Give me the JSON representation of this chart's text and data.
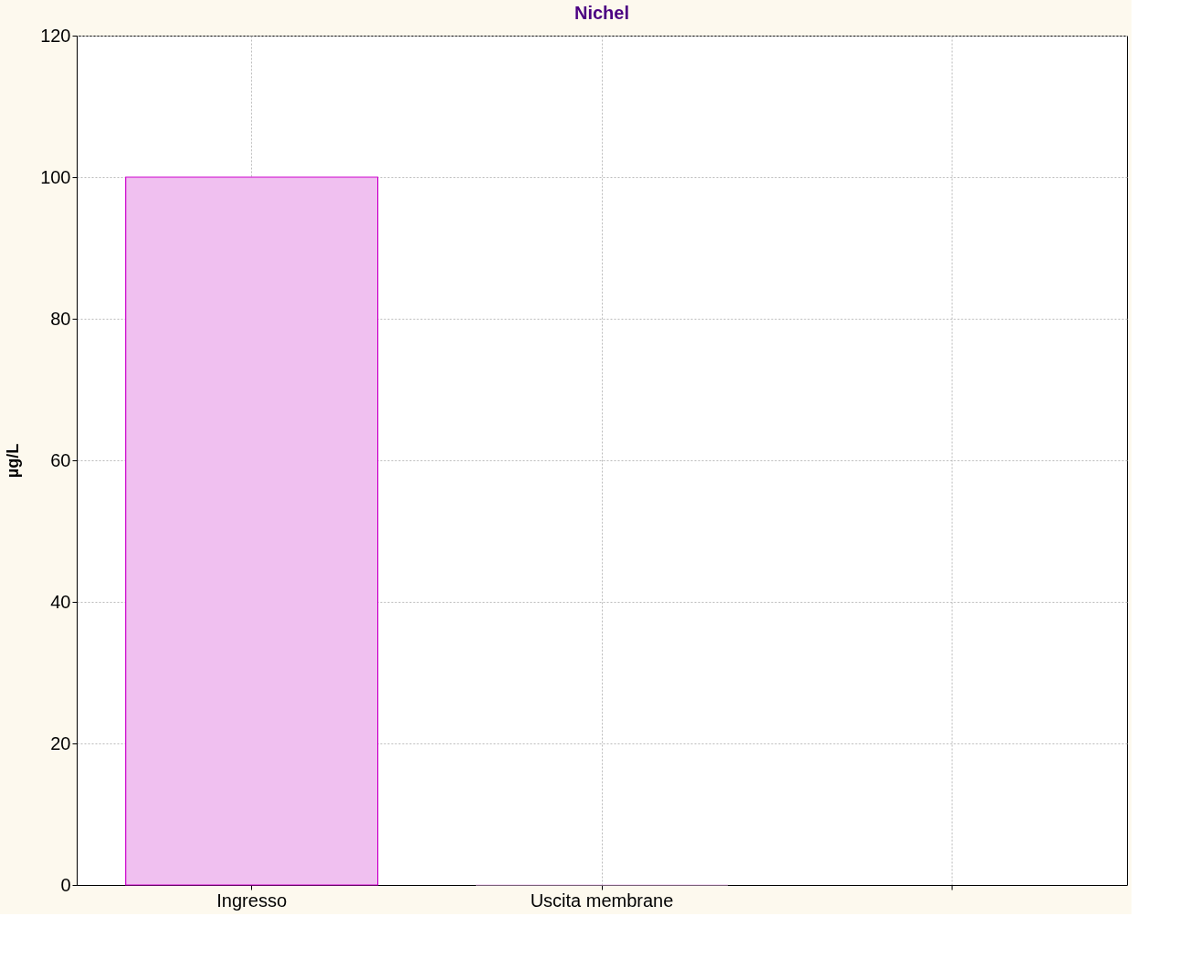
{
  "chart_data": {
    "type": "bar",
    "title": "Nichel",
    "ylabel": "µg/L",
    "categories": [
      "Ingresso",
      "Uscita membrane",
      null
    ],
    "series": [
      {
        "color": "#f0c0f0",
        "values": [
          100,
          0,
          null
        ]
      }
    ],
    "ylim": [
      0,
      120
    ],
    "yticks": [
      0,
      20,
      40,
      60,
      80,
      100,
      120
    ],
    "grid": true
  }
}
